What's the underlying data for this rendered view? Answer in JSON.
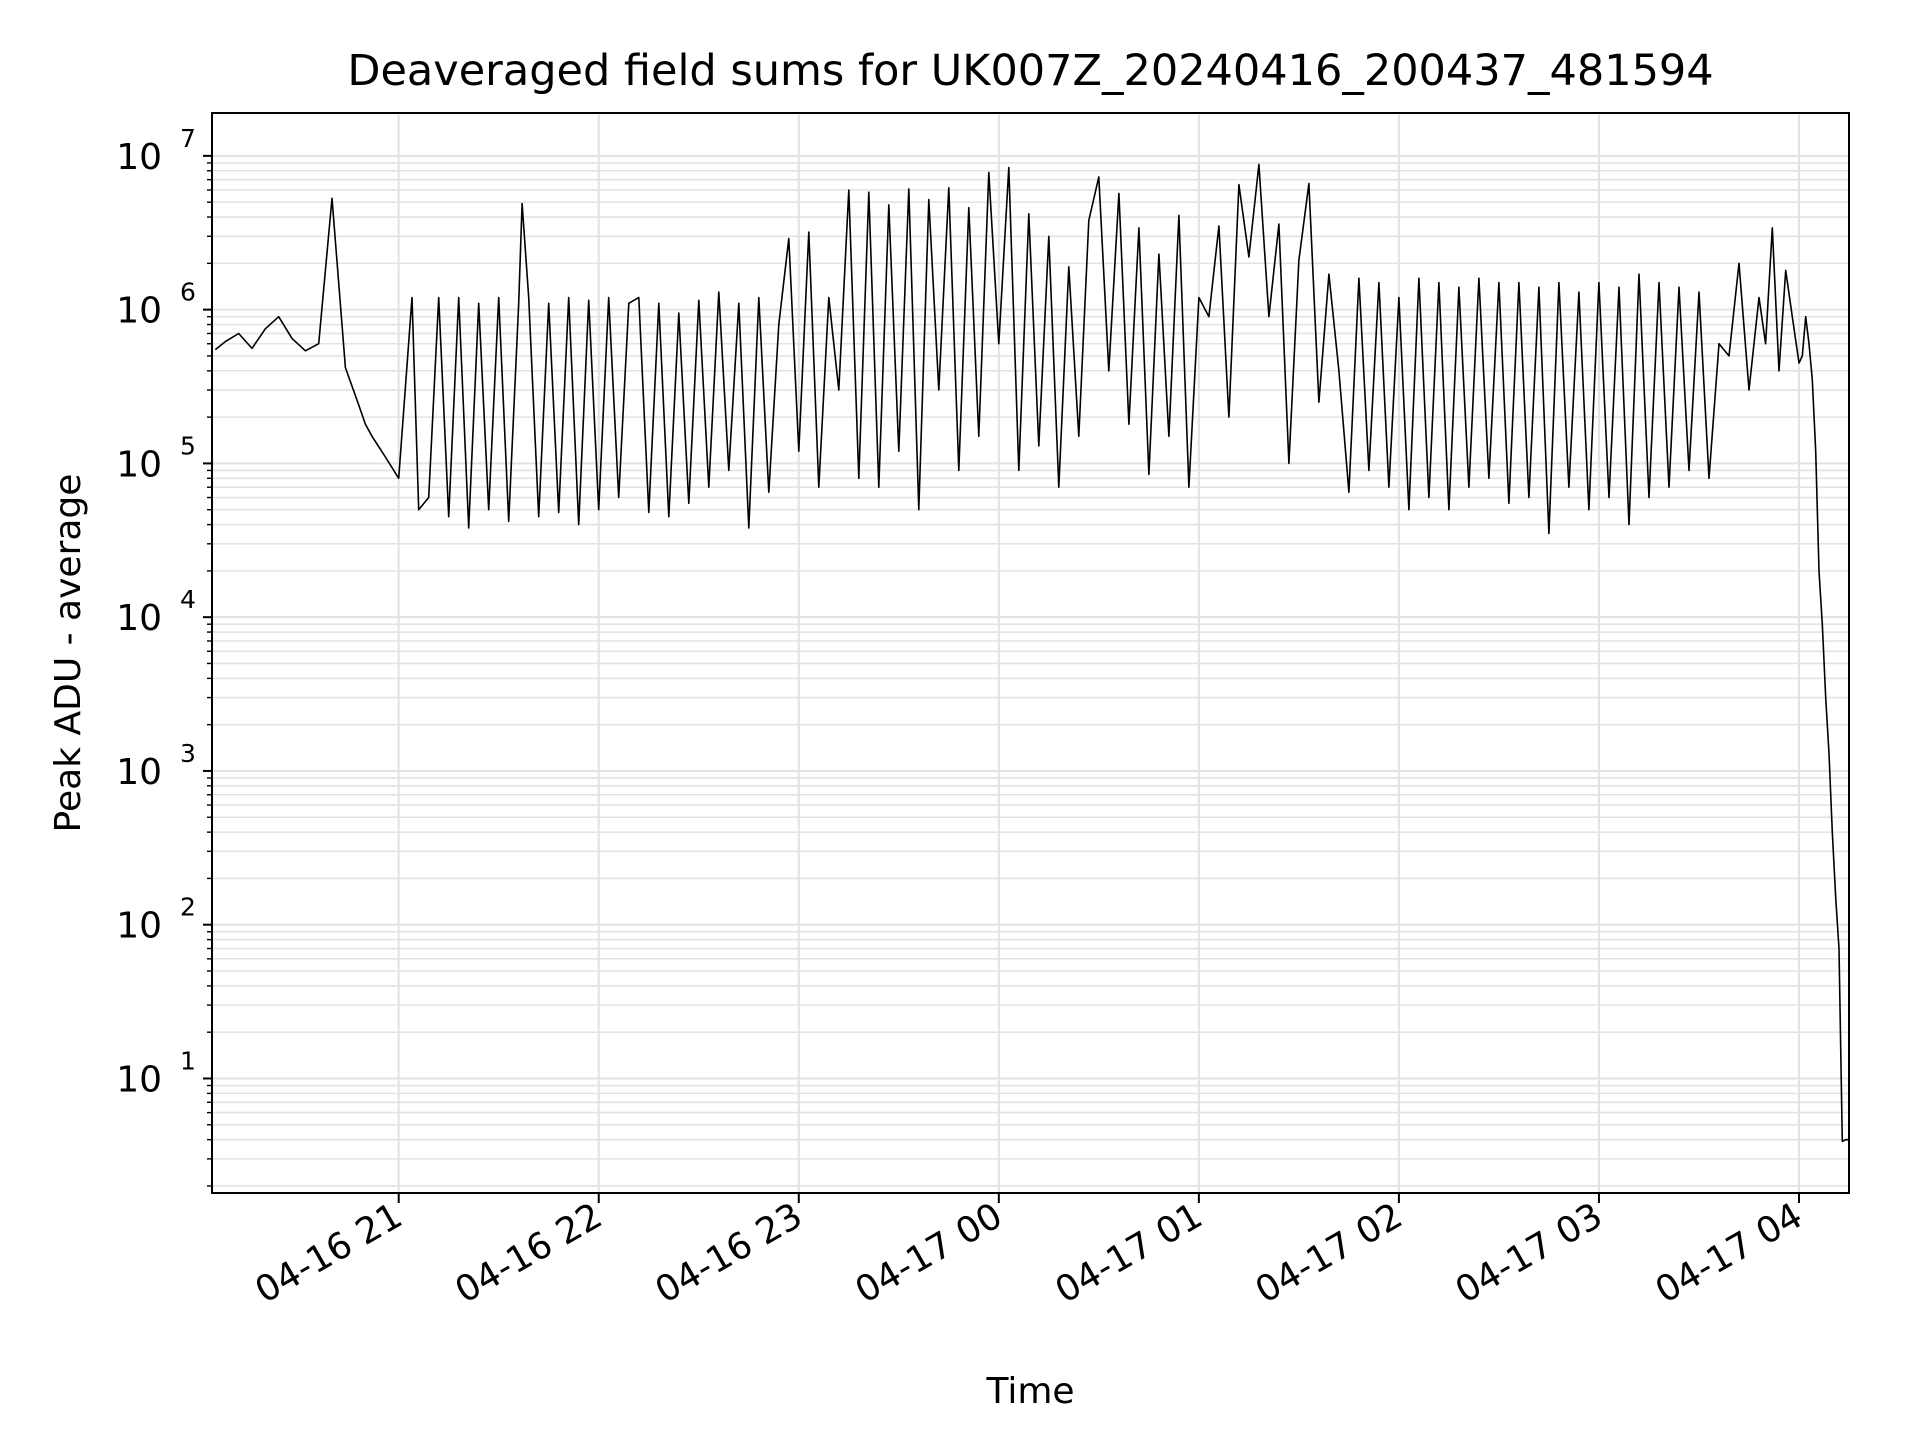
{
  "chart_data": {
    "type": "line",
    "title": "Deaveraged field sums for UK007Z_20240416_200437_481594",
    "xlabel": "Time",
    "ylabel": "Peak ADU - average",
    "yscale": "log",
    "ylim": [
      1.8,
      19000000
    ],
    "xlim": [
      "2024-04-16 20:04",
      "2024-04-17 04:15"
    ],
    "grid": true,
    "legend": "none",
    "line_color": "#000000",
    "grid_color": "#e3e3e3",
    "x_ticks": [
      "04-16 21",
      "04-16 22",
      "04-16 23",
      "04-17 00",
      "04-17 01",
      "04-17 02",
      "04-17 03",
      "04-17 04"
    ],
    "y_ticks": [
      {
        "base": "10",
        "exp": "1",
        "value": 10
      },
      {
        "base": "10",
        "exp": "2",
        "value": 100
      },
      {
        "base": "10",
        "exp": "3",
        "value": 1000
      },
      {
        "base": "10",
        "exp": "4",
        "value": 10000
      },
      {
        "base": "10",
        "exp": "5",
        "value": 100000
      },
      {
        "base": "10",
        "exp": "6",
        "value": 1000000
      },
      {
        "base": "10",
        "exp": "7",
        "value": 10000000
      }
    ],
    "series": [
      {
        "x": [
          "2024-04-16 20:05",
          "2024-04-16 20:08",
          "2024-04-16 20:12",
          "2024-04-16 20:16",
          "2024-04-16 20:20",
          "2024-04-16 20:24",
          "2024-04-16 20:28",
          "2024-04-16 20:32",
          "2024-04-16 20:36",
          "2024-04-16 20:40",
          "2024-04-16 20:44",
          "2024-04-16 20:48",
          "2024-04-16 20:50",
          "2024-04-16 20:52",
          "2024-04-16 20:56",
          "2024-04-16 21:00",
          "2024-04-16 21:04",
          "2024-04-16 21:06",
          "2024-04-16 21:09",
          "2024-04-16 21:12",
          "2024-04-16 21:15",
          "2024-04-16 21:18",
          "2024-04-16 21:21",
          "2024-04-16 21:24",
          "2024-04-16 21:27",
          "2024-04-16 21:30",
          "2024-04-16 21:33",
          "2024-04-16 21:36",
          "2024-04-16 21:37",
          "2024-04-16 21:39",
          "2024-04-16 21:42",
          "2024-04-16 21:45",
          "2024-04-16 21:48",
          "2024-04-16 21:51",
          "2024-04-16 21:54",
          "2024-04-16 21:57",
          "2024-04-16 22:00",
          "2024-04-16 22:03",
          "2024-04-16 22:06",
          "2024-04-16 22:09",
          "2024-04-16 22:12",
          "2024-04-16 22:15",
          "2024-04-16 22:18",
          "2024-04-16 22:21",
          "2024-04-16 22:24",
          "2024-04-16 22:27",
          "2024-04-16 22:30",
          "2024-04-16 22:33",
          "2024-04-16 22:36",
          "2024-04-16 22:39",
          "2024-04-16 22:42",
          "2024-04-16 22:45",
          "2024-04-16 22:48",
          "2024-04-16 22:51",
          "2024-04-16 22:54",
          "2024-04-16 22:57",
          "2024-04-16 23:00",
          "2024-04-16 23:03",
          "2024-04-16 23:06",
          "2024-04-16 23:09",
          "2024-04-16 23:12",
          "2024-04-16 23:15",
          "2024-04-16 23:18",
          "2024-04-16 23:21",
          "2024-04-16 23:24",
          "2024-04-16 23:27",
          "2024-04-16 23:30",
          "2024-04-16 23:33",
          "2024-04-16 23:36",
          "2024-04-16 23:39",
          "2024-04-16 23:42",
          "2024-04-16 23:45",
          "2024-04-16 23:48",
          "2024-04-16 23:51",
          "2024-04-16 23:54",
          "2024-04-16 23:57",
          "2024-04-17 00:00",
          "2024-04-17 00:03",
          "2024-04-17 00:06",
          "2024-04-17 00:09",
          "2024-04-17 00:12",
          "2024-04-17 00:15",
          "2024-04-17 00:18",
          "2024-04-17 00:21",
          "2024-04-17 00:24",
          "2024-04-17 00:27",
          "2024-04-17 00:30",
          "2024-04-17 00:33",
          "2024-04-17 00:36",
          "2024-04-17 00:39",
          "2024-04-17 00:42",
          "2024-04-17 00:45",
          "2024-04-17 00:48",
          "2024-04-17 00:51",
          "2024-04-17 00:54",
          "2024-04-17 00:57",
          "2024-04-17 01:00",
          "2024-04-17 01:03",
          "2024-04-17 01:06",
          "2024-04-17 01:09",
          "2024-04-17 01:12",
          "2024-04-17 01:15",
          "2024-04-17 01:18",
          "2024-04-17 01:21",
          "2024-04-17 01:24",
          "2024-04-17 01:27",
          "2024-04-17 01:30",
          "2024-04-17 01:33",
          "2024-04-17 01:36",
          "2024-04-17 01:39",
          "2024-04-17 01:42",
          "2024-04-17 01:45",
          "2024-04-17 01:48",
          "2024-04-17 01:51",
          "2024-04-17 01:54",
          "2024-04-17 01:57",
          "2024-04-17 02:00",
          "2024-04-17 02:03",
          "2024-04-17 02:06",
          "2024-04-17 02:09",
          "2024-04-17 02:12",
          "2024-04-17 02:15",
          "2024-04-17 02:18",
          "2024-04-17 02:21",
          "2024-04-17 02:24",
          "2024-04-17 02:27",
          "2024-04-17 02:30",
          "2024-04-17 02:33",
          "2024-04-17 02:36",
          "2024-04-17 02:39",
          "2024-04-17 02:42",
          "2024-04-17 02:45",
          "2024-04-17 02:48",
          "2024-04-17 02:51",
          "2024-04-17 02:54",
          "2024-04-17 02:57",
          "2024-04-17 03:00",
          "2024-04-17 03:03",
          "2024-04-17 03:06",
          "2024-04-17 03:09",
          "2024-04-17 03:12",
          "2024-04-17 03:15",
          "2024-04-17 03:18",
          "2024-04-17 03:21",
          "2024-04-17 03:24",
          "2024-04-17 03:27",
          "2024-04-17 03:30",
          "2024-04-17 03:33",
          "2024-04-17 03:36",
          "2024-04-17 03:39",
          "2024-04-17 03:42",
          "2024-04-17 03:45",
          "2024-04-17 03:48",
          "2024-04-17 03:50",
          "2024-04-17 03:52",
          "2024-04-17 03:54",
          "2024-04-17 03:56",
          "2024-04-17 03:58",
          "2024-04-17 04:00",
          "2024-04-17 04:01",
          "2024-04-17 04:02",
          "2024-04-17 04:03",
          "2024-04-17 04:04",
          "2024-04-17 04:05",
          "2024-04-17 04:06",
          "2024-04-17 04:07",
          "2024-04-17 04:08",
          "2024-04-17 04:09",
          "2024-04-17 04:10",
          "2024-04-17 04:11",
          "2024-04-17 04:12",
          "2024-04-17 04:13",
          "2024-04-17 04:14",
          "2024-04-17 04:15"
        ],
        "y": [
          550000,
          620000,
          700000,
          560000,
          750000,
          900000,
          650000,
          540000,
          600000,
          5300000,
          420000,
          240000,
          180000,
          150000,
          110000,
          80000,
          1200000,
          50000,
          60000,
          1200000,
          45000,
          1200000,
          38000,
          1100000,
          50000,
          1200000,
          42000,
          1100000,
          4900000,
          1200000,
          45000,
          1100000,
          48000,
          1200000,
          40000,
          1150000,
          50000,
          1200000,
          60000,
          1100000,
          1200000,
          48000,
          1100000,
          45000,
          950000,
          55000,
          1150000,
          70000,
          1300000,
          90000,
          1100000,
          38000,
          1200000,
          65000,
          800000,
          2900000,
          120000,
          3200000,
          70000,
          1200000,
          300000,
          6000000,
          80000,
          5800000,
          70000,
          4800000,
          120000,
          6100000,
          50000,
          5200000,
          300000,
          6200000,
          90000,
          4600000,
          150000,
          7800000,
          600000,
          8400000,
          90000,
          4200000,
          130000,
          3000000,
          70000,
          1900000,
          150000,
          3800000,
          7300000,
          400000,
          5700000,
          180000,
          3400000,
          85000,
          2300000,
          150000,
          4100000,
          70000,
          1200000,
          900000,
          3500000,
          200000,
          6500000,
          2200000,
          8800000,
          900000,
          3600000,
          100000,
          2100000,
          6600000,
          250000,
          1700000,
          400000,
          65000,
          1600000,
          90000,
          1500000,
          70000,
          1200000,
          50000,
          1600000,
          60000,
          1500000,
          50000,
          1400000,
          70000,
          1600000,
          80000,
          1500000,
          55000,
          1500000,
          60000,
          1400000,
          35000,
          1500000,
          70000,
          1300000,
          50000,
          1500000,
          60000,
          1400000,
          40000,
          1700000,
          60000,
          1500000,
          70000,
          1400000,
          90000,
          1300000,
          80000,
          600000,
          500000,
          2000000,
          300000,
          1200000,
          600000,
          3400000,
          400000,
          1800000,
          900000,
          450000,
          500000,
          900000,
          600000,
          350000,
          120000,
          20000,
          9000,
          3000,
          1300,
          400,
          150,
          70,
          3.9,
          4.0,
          4.0
        ]
      }
    ]
  }
}
